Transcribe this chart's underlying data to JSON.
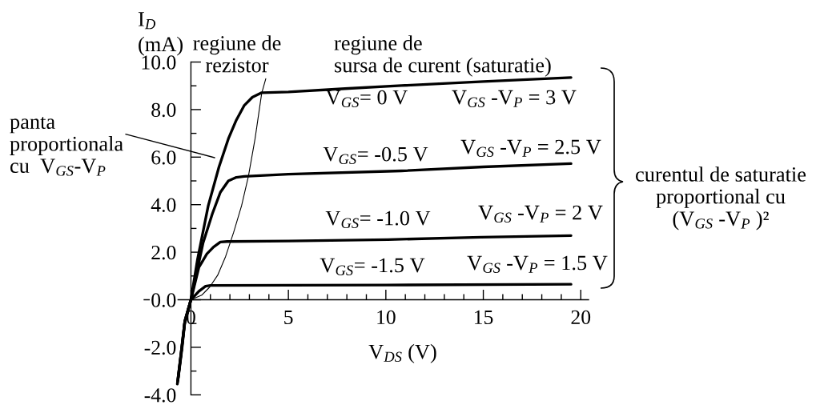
{
  "chart_data": {
    "type": "line",
    "xlabel": "V$_{DS}$ (V)",
    "ylabel": "I$_{D}$\n(mA)",
    "xlim": [
      -2.4,
      20.4
    ],
    "ylim": [
      -4,
      10
    ],
    "xticks": [
      0,
      {
        "value": 1,
        "label": null
      },
      {
        "value": 2,
        "label": null
      },
      {
        "value": 3,
        "label": null
      },
      {
        "value": 4,
        "label": null
      },
      5,
      {
        "value": 6,
        "label": null
      },
      {
        "value": 7,
        "label": null
      },
      {
        "value": 8,
        "label": null
      },
      {
        "value": 9,
        "label": null
      },
      10,
      {
        "value": 11,
        "label": null
      },
      {
        "value": 12,
        "label": null
      },
      {
        "value": 13,
        "label": null
      },
      {
        "value": 14,
        "label": null
      },
      15,
      {
        "value": 16,
        "label": null
      },
      {
        "value": 17,
        "label": null
      },
      {
        "value": 18,
        "label": null
      },
      {
        "value": 19,
        "label": null
      },
      20
    ],
    "yticks": [
      {
        "value": -4,
        "label": "-4.0"
      },
      {
        "value": -3,
        "label": null
      },
      {
        "value": -2,
        "label": "-2.0"
      },
      {
        "value": -1,
        "label": null
      },
      {
        "value": 0,
        "label": "0.0"
      },
      {
        "value": 1,
        "label": null
      },
      {
        "value": 2,
        "label": "2.0"
      },
      {
        "value": 3,
        "label": null
      },
      {
        "value": 4,
        "label": "4.0"
      },
      {
        "value": 5,
        "label": null
      },
      {
        "value": 6,
        "label": "6.0"
      },
      {
        "value": 7,
        "label": null
      },
      {
        "value": 8,
        "label": "8.0"
      },
      {
        "value": 9,
        "label": null
      },
      {
        "value": 10,
        "label": "10.0"
      }
    ],
    "series": [
      {
        "name": "V$_{GS}$= 0 V",
        "color": "#000000",
        "x": [
          -0.7,
          -0.5,
          -0.33,
          0,
          0.34,
          0.89,
          1.44,
          1.92,
          2.33,
          2.74,
          3.15,
          3.63,
          5.0,
          7.9,
          10.8,
          15.0,
          19.5
        ],
        "values": [
          -3.55,
          -2.2,
          -1.0,
          0,
          1.71,
          3.96,
          5.59,
          6.77,
          7.56,
          8.18,
          8.52,
          8.71,
          8.74,
          8.88,
          9.01,
          9.18,
          9.35
        ]
      },
      {
        "name": "V$_{GS}$= -0.5 V",
        "color": "#000000",
        "x": [
          -0.69,
          -0.49,
          -0.32,
          0,
          0.62,
          1.1,
          1.51,
          1.92,
          2.33,
          2.74,
          5.0,
          10.8,
          15.0,
          19.5
        ],
        "values": [
          -3.5,
          -2.15,
          -0.95,
          0,
          2.38,
          3.62,
          4.52,
          5.0,
          5.15,
          5.19,
          5.28,
          5.42,
          5.59,
          5.73
        ]
      },
      {
        "name": "V$_{GS}$= -1.0 V",
        "color": "#000000",
        "x": [
          -0.67,
          -0.47,
          -0.31,
          0,
          0.41,
          0.82,
          1.16,
          1.51,
          1.86,
          5.0,
          10.1,
          14.9,
          19.5
        ],
        "values": [
          -3.4,
          -2.05,
          -0.9,
          0,
          1.37,
          1.93,
          2.22,
          2.43,
          2.45,
          2.47,
          2.53,
          2.63,
          2.7
        ]
      },
      {
        "name": "V$_{GS}$= -1.5 V",
        "color": "#000000",
        "x": [
          -0.65,
          -0.45,
          -0.3,
          0,
          0.41,
          0.75,
          1.0,
          5.0,
          10.0,
          19.5
        ],
        "values": [
          -3.3,
          -2.0,
          -0.85,
          0,
          0.36,
          0.57,
          0.6,
          0.61,
          0.62,
          0.65
        ]
      },
      {
        "color": "#000000",
        "x": [
          0,
          0.55,
          0.96,
          1.37,
          1.78,
          2.19,
          2.6,
          2.95,
          3.29,
          3.63,
          3.84
        ],
        "values": [
          0,
          0.19,
          0.53,
          1.03,
          1.82,
          2.83,
          3.96,
          5.2,
          6.77,
          8.68,
          9.3
        ]
      }
    ],
    "annotations": [
      "regiune de\nrezistor",
      "regiune de\nsursa de curent (saturatie)",
      "panta\nproportionala\ncu  V$_{GS}$-V$_{P}$",
      "V$_{GS}$ -V$_{P}$ = 3 V",
      "V$_{GS}$ -V$_{P}$ = 2.5 V",
      "V$_{GS}$ -V$_{P}$ = 2 V",
      "V$_{GS}$ -V$_{P}$ = 1.5 V",
      "curentul de saturatie\nproportional cu\n(V$_{GS}$ -V$_{P}$ )²"
    ]
  }
}
